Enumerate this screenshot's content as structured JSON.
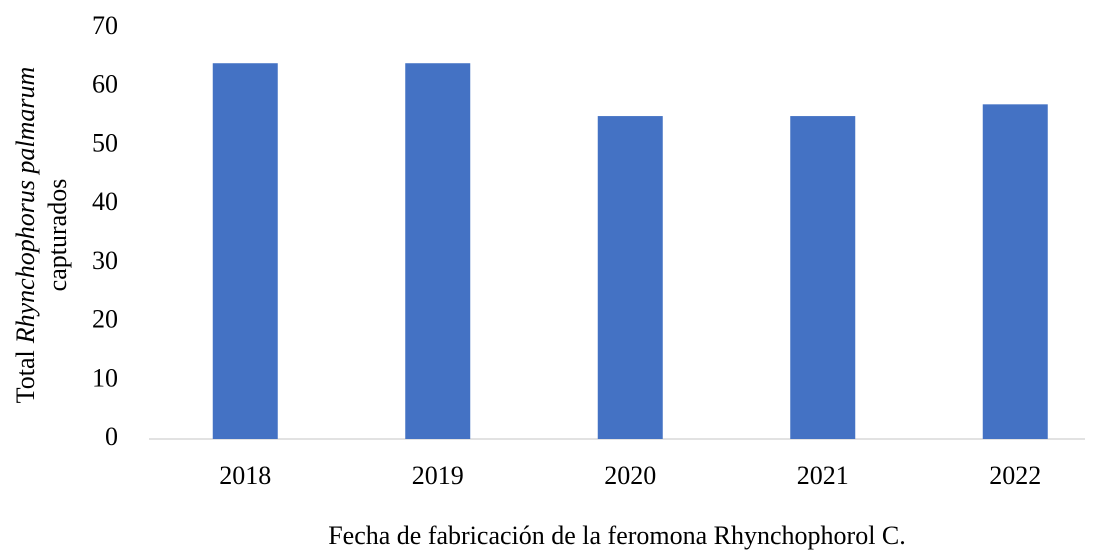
{
  "chart_data": {
    "type": "bar",
    "x_label": "Fecha de fabricación de la feromona Rhynchophorol C.",
    "y_label": {
      "line1": [
        "Total",
        "Rhynchophorus palmarum"
      ],
      "line2": "capturados"
    },
    "categories": [
      "2018",
      "2019",
      "2020",
      "2021",
      "2022"
    ],
    "values": [
      64,
      64,
      55,
      55,
      57
    ],
    "color": "#4472c4",
    "ylim": [
      0,
      70
    ],
    "yticks": [
      0,
      10,
      20,
      30,
      40,
      50,
      60,
      70
    ],
    "grid": false
  }
}
